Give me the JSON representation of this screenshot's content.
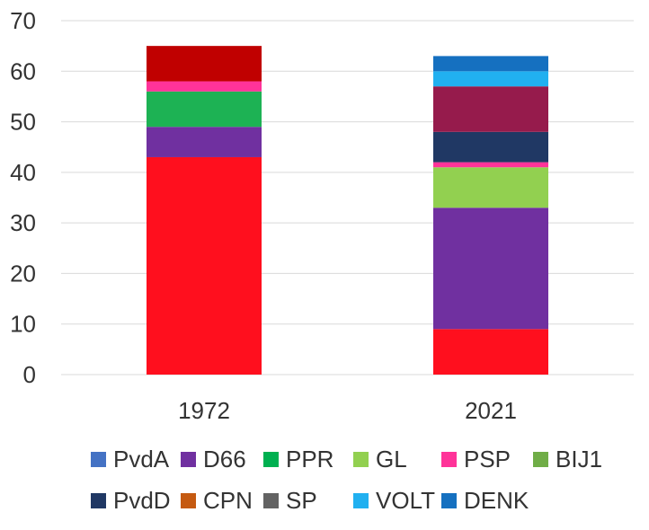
{
  "chart_data": {
    "type": "bar",
    "stacked": true,
    "categories": [
      "1972",
      "2021"
    ],
    "ylim": [
      0,
      70
    ],
    "yticks": [
      0,
      10,
      20,
      30,
      40,
      50,
      60,
      70
    ],
    "grid": true,
    "legend_position": "bottom",
    "series": [
      {
        "name": "PvdA",
        "color": "#ff0f1e",
        "values": [
          43,
          9
        ]
      },
      {
        "name": "D66",
        "color": "#7030a0",
        "values": [
          6,
          24
        ]
      },
      {
        "name": "PPR",
        "color": "#1db254",
        "values": [
          7,
          0
        ]
      },
      {
        "name": "GL",
        "color": "#92d050",
        "values": [
          0,
          8
        ]
      },
      {
        "name": "PSP",
        "color": "#ff3399",
        "values": [
          2,
          1
        ]
      },
      {
        "name": "BIJ1",
        "color": "#70ad47",
        "values": [
          0,
          0
        ]
      },
      {
        "name": "PvdD",
        "color": "#203864",
        "values": [
          0,
          6
        ]
      },
      {
        "name": "CPN",
        "color": "#c00000",
        "values": [
          7,
          0
        ]
      },
      {
        "name": "SP",
        "color": "#961b4c",
        "values": [
          0,
          9
        ]
      },
      {
        "name": "VOLT",
        "color": "#21b0f0",
        "values": [
          0,
          3
        ]
      },
      {
        "name": "DENK",
        "color": "#1570c0",
        "values": [
          0,
          3
        ]
      }
    ],
    "legend": [
      {
        "name": "PvdA",
        "color": "#4472c4"
      },
      {
        "name": "D66",
        "color": "#7030a0"
      },
      {
        "name": "PPR",
        "color": "#00b050"
      },
      {
        "name": "GL",
        "color": "#92d050"
      },
      {
        "name": "PSP",
        "color": "#ff3399"
      },
      {
        "name": "BIJ1",
        "color": "#70ad47"
      },
      {
        "name": "PvdD",
        "color": "#203864"
      },
      {
        "name": "CPN",
        "color": "#c55a11"
      },
      {
        "name": "SP",
        "color": "#636363"
      },
      {
        "name": "VOLT",
        "color": "#21b0f0"
      },
      {
        "name": "DENK",
        "color": "#1570c0"
      }
    ]
  }
}
